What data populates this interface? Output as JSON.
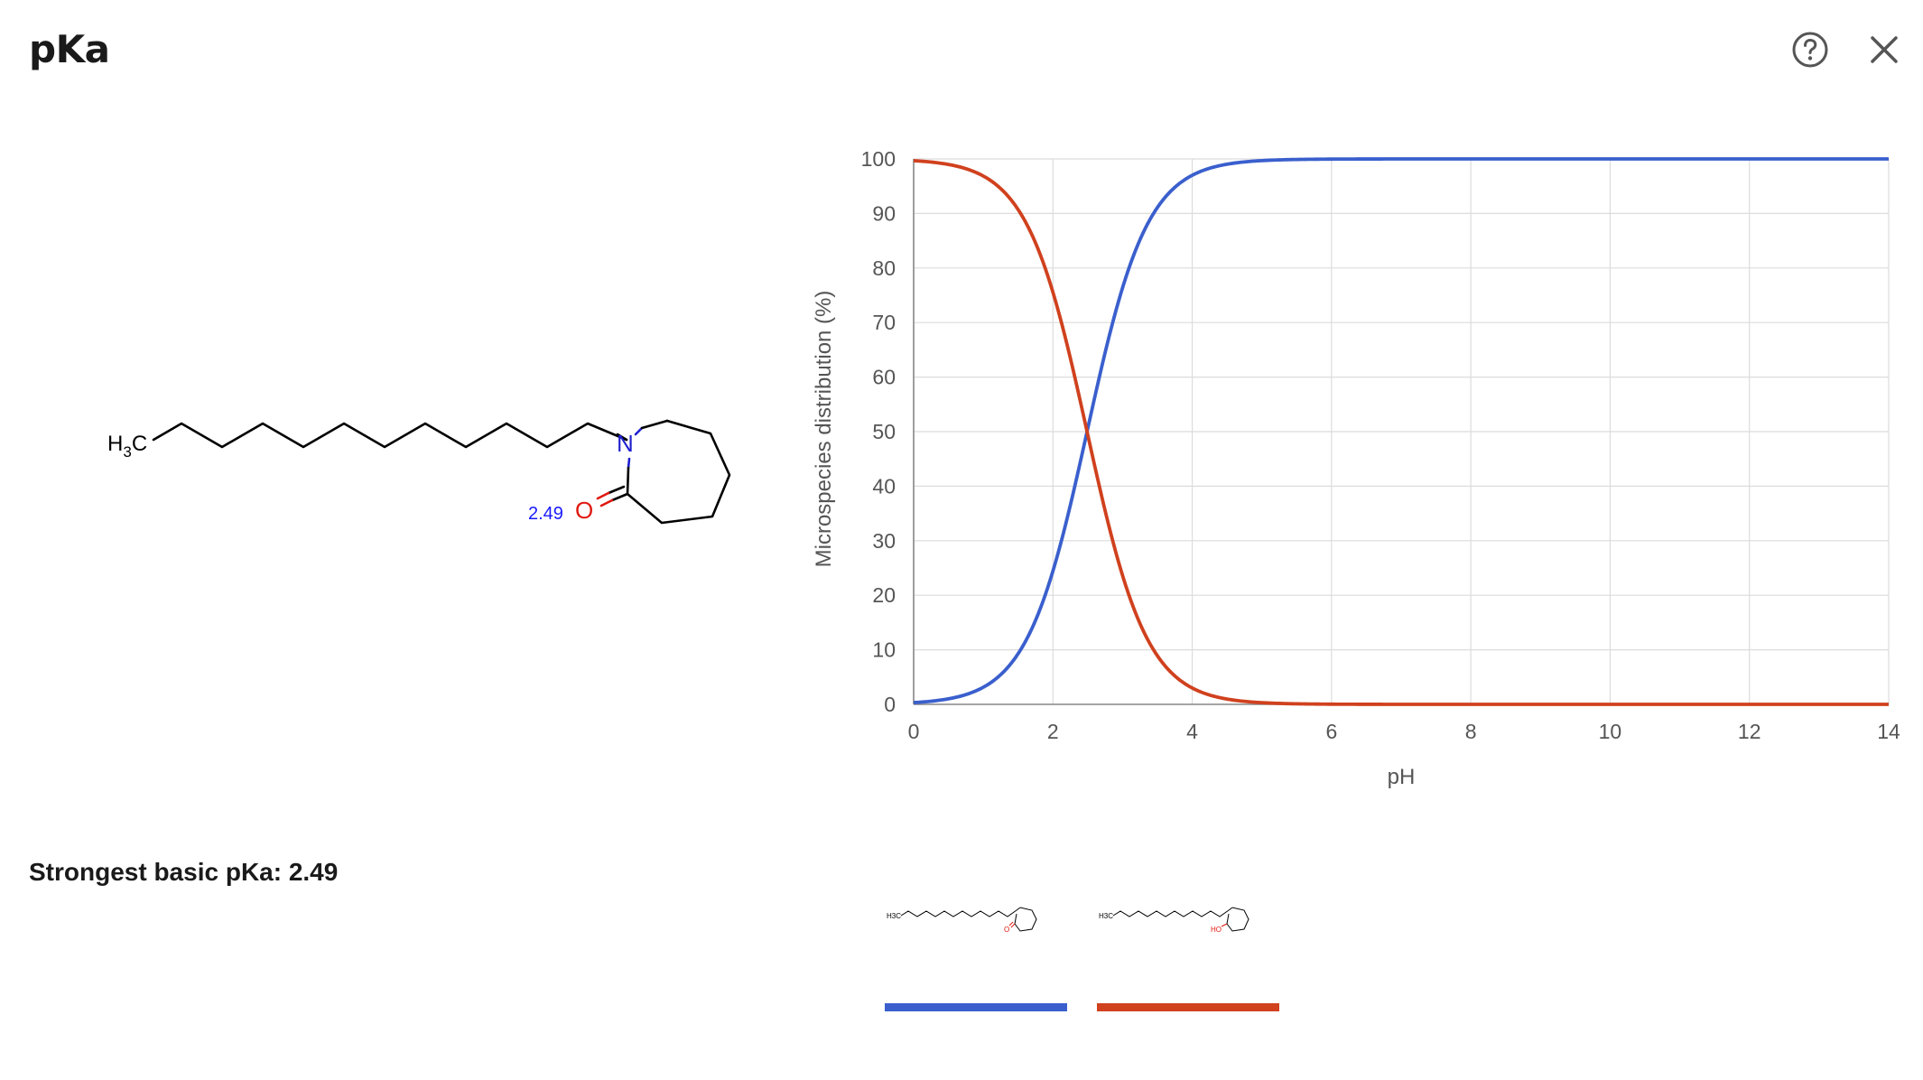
{
  "header": {
    "title": "pKa",
    "help_icon": "help-circle-icon",
    "close_icon": "close-icon"
  },
  "molecule": {
    "methyl_label_main": "H",
    "methyl_label_sub": "3",
    "methyl_label_end": "C",
    "nitrogen_label": "N",
    "oxygen_label": "O",
    "pka_annotation": "2.49",
    "colors": {
      "bond": "#000000",
      "nitrogen": "#1f1fd0",
      "oxygen": "#e0190f",
      "annotation": "#1a1aff"
    }
  },
  "summary": {
    "text": "Strongest basic pKa: 2.49"
  },
  "chart_data": {
    "type": "line",
    "xlabel": "pH",
    "ylabel": "Microspecies distribution (%)",
    "xlim": [
      0,
      14
    ],
    "ylim": [
      0,
      100
    ],
    "xticks": [
      0,
      2,
      4,
      6,
      8,
      10,
      12,
      14
    ],
    "yticks": [
      0,
      10,
      20,
      30,
      40,
      50,
      60,
      70,
      80,
      90,
      100
    ],
    "grid": true,
    "pKa": 2.49,
    "x": [
      0,
      0.5,
      1,
      1.5,
      2,
      2.25,
      2.49,
      2.75,
      3,
      3.5,
      4,
      4.5,
      5,
      6,
      7,
      8,
      9,
      10,
      11,
      12,
      13,
      14
    ],
    "series": [
      {
        "color": "#3a5fcd",
        "values": [
          0.3,
          1.0,
          3.1,
          9.3,
          24.4,
          36.5,
          50.0,
          64.5,
          76.4,
          91.1,
          97.0,
          99.0,
          99.7,
          100,
          100,
          100,
          100,
          100,
          100,
          100,
          100,
          100
        ]
      },
      {
        "color": "#d0411e",
        "values": [
          99.7,
          99.0,
          96.9,
          90.7,
          75.6,
          63.5,
          50.0,
          35.5,
          23.6,
          8.9,
          3.0,
          1.0,
          0.3,
          0,
          0,
          0,
          0,
          0,
          0,
          0,
          0,
          0
        ]
      }
    ]
  },
  "legend": {
    "items": [
      {
        "color": "#3a5fcd",
        "methyl_label": "H3C",
        "hetero_label": "O"
      },
      {
        "color": "#d0411e",
        "methyl_label": "H3C",
        "hetero_label": "HO"
      }
    ]
  }
}
